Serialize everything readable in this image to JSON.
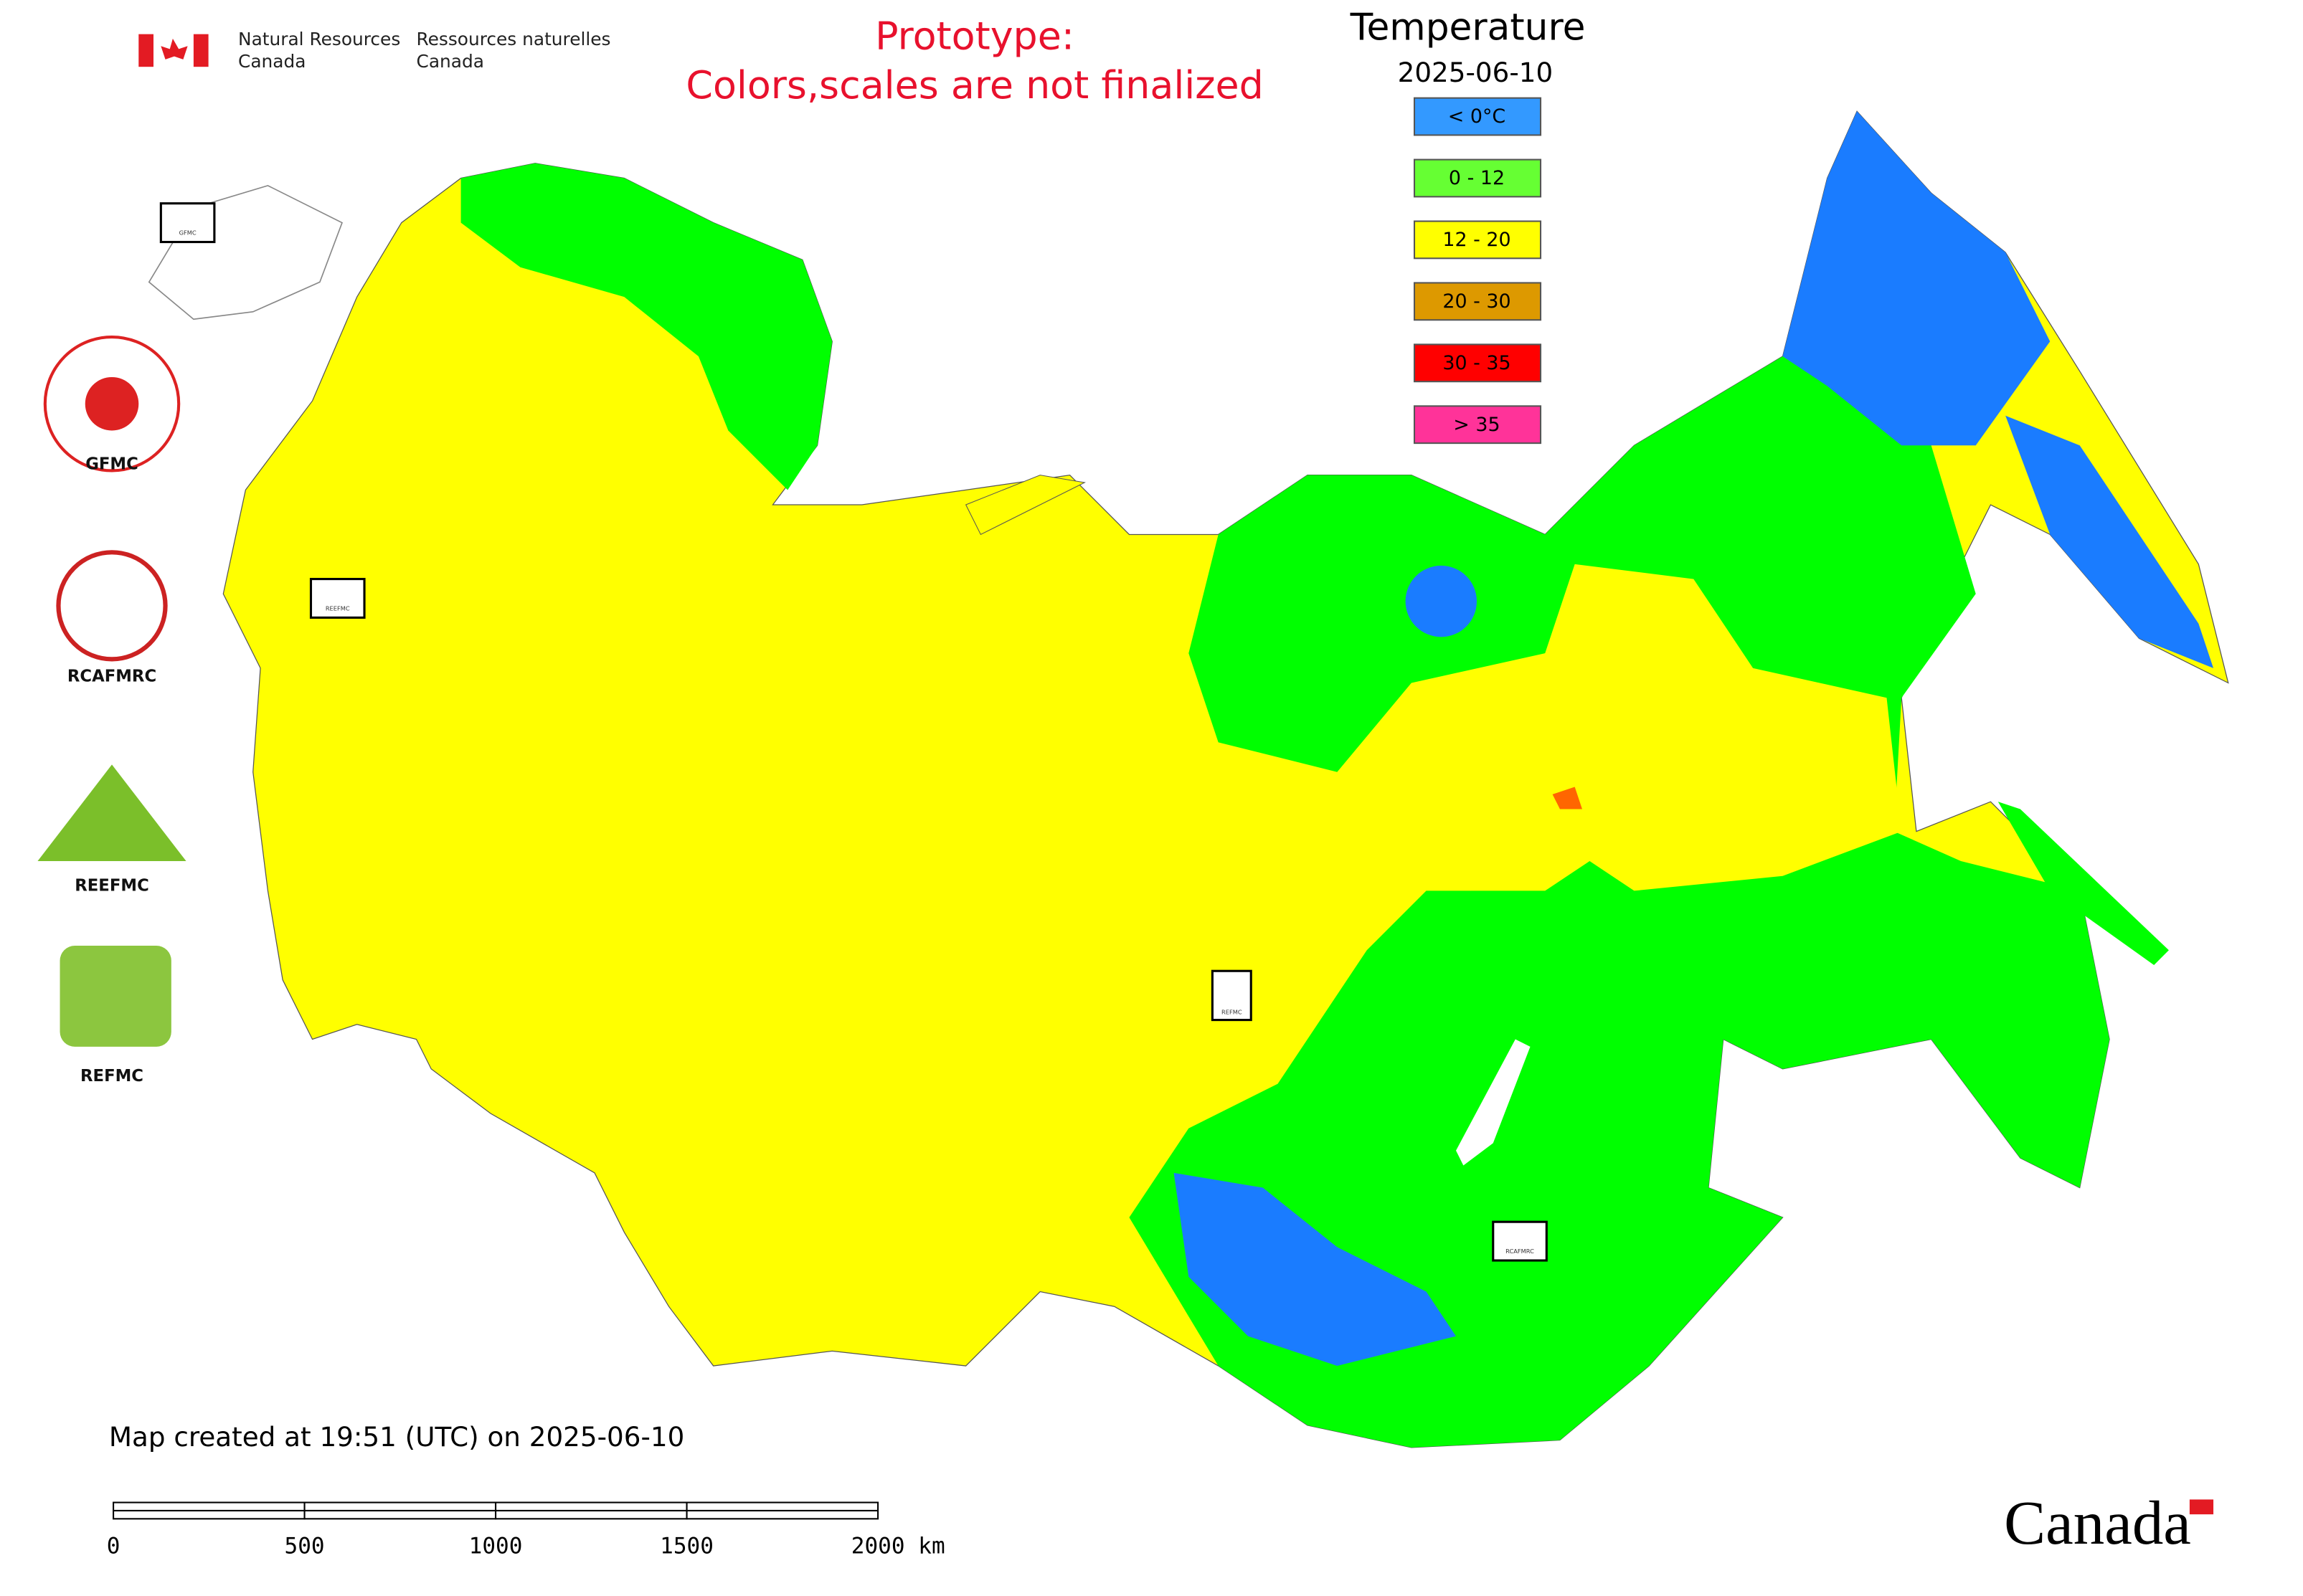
{
  "header": {
    "agency_en": [
      "Natural Resources",
      "Canada"
    ],
    "agency_fr": [
      "Ressources naturelles",
      "Canada"
    ]
  },
  "notice": [
    "Prototype:",
    "Colors,scales are not finalized"
  ],
  "legend": {
    "title": "Temperature",
    "date": "2025-06-10",
    "items": [
      {
        "label": "< 0°C",
        "color": "#3399ff"
      },
      {
        "label": "0 - 12",
        "color": "#66ff33"
      },
      {
        "label": "12 - 20",
        "color": "#ffff00"
      },
      {
        "label": "20 - 30",
        "color": "#dd9900"
      },
      {
        "label": "30 - 35",
        "color": "#ff0000"
      },
      {
        "label": "> 35",
        "color": "#ff3399"
      }
    ]
  },
  "logos": [
    "GFMC",
    "RCAFMRC",
    "REEFMC",
    "REFMC"
  ],
  "map_logos": [
    "GFMC",
    "RCAFMRC",
    "REEFMC",
    "REFMC"
  ],
  "footer": {
    "created": "Map created at 19:51 (UTC) on 2025-06-10",
    "scale": [
      "0",
      "500",
      "1000",
      "1500",
      "2000 km"
    ],
    "wordmark": "Canada"
  }
}
